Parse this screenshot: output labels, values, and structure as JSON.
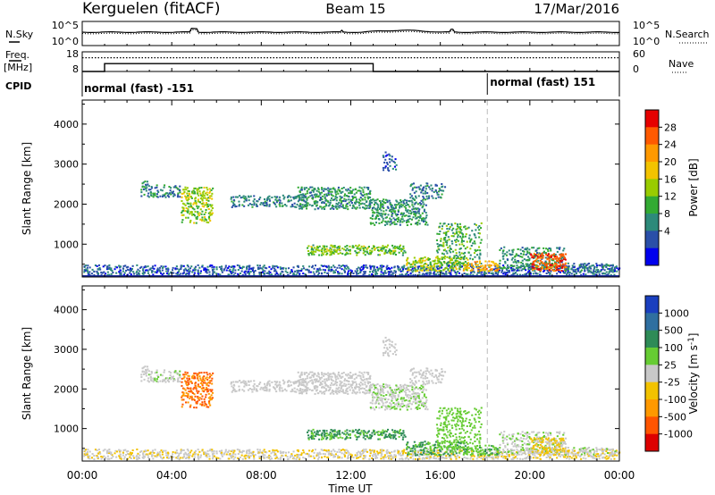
{
  "header": {
    "title": "Kerguelen (fitACF)",
    "beam": "Beam 15",
    "date": "17/Mar/2016"
  },
  "sky_panel": {
    "left_label": "N.Sky",
    "right_label": "N.Search",
    "left_ticks": [
      "10^5",
      "10^0"
    ],
    "right_ticks": [
      "10^5",
      "10^0"
    ]
  },
  "freq_panel": {
    "left_label_1": "Freq.",
    "left_label_2": "[MHz]",
    "right_label": "Nave",
    "left_ticks": [
      "18",
      "8"
    ],
    "right_ticks": [
      "60",
      "0"
    ],
    "freq_steps": [
      {
        "t": 0.0,
        "f": 8
      },
      {
        "t": 1.0,
        "f": 12
      },
      {
        "t": 13.0,
        "f": 12
      },
      {
        "t": 13.0,
        "f": 8
      },
      {
        "t": 24.0,
        "f": 8
      }
    ],
    "nave_level": 42
  },
  "cpid_panel": {
    "label": "CPID",
    "modes": [
      {
        "start": 0.0,
        "text": "normal (fast) -151"
      },
      {
        "start": 18.1,
        "text": "normal (fast) 151"
      }
    ]
  },
  "power_colorbar": {
    "label": "Power [dB]",
    "ticks": [
      "28",
      "24",
      "20",
      "16",
      "12",
      "8",
      "4"
    ],
    "colors": [
      "#e60000",
      "#ff5a00",
      "#ff9900",
      "#f3c300",
      "#99cc00",
      "#33aa33",
      "#2d8a7a",
      "#2a4fa8",
      "#0000ee"
    ]
  },
  "velocity_colorbar": {
    "label": "Velocity [m s^-1]",
    "ticks": [
      "1000",
      "500",
      "100",
      "25",
      "-25",
      "-100",
      "-500",
      "-1000"
    ],
    "colors": [
      "#1a3fbf",
      "#2f6fa0",
      "#2e8b57",
      "#66cc33",
      "#c8c8c8",
      "#f2c200",
      "#ff9900",
      "#ff5500",
      "#dd0000"
    ]
  },
  "chart_data": {
    "type": "heatmap",
    "xlabel": "Time UT",
    "ylabel": "Slant Range [km]",
    "xlim": [
      0,
      24
    ],
    "ylim": [
      180,
      4600
    ],
    "x_ticks": [
      "00:00",
      "04:00",
      "08:00",
      "12:00",
      "16:00",
      "20:00",
      "00:00"
    ],
    "y_ticks": [
      "1000",
      "2000",
      "3000",
      "4000"
    ],
    "mode_change_time": 18.1,
    "scatter_regions": [
      {
        "t0": 0.0,
        "t1": 24.0,
        "r0": 200,
        "r1": 450,
        "density": 0.55,
        "power": 6,
        "vel": -20
      },
      {
        "t0": 2.6,
        "t1": 4.4,
        "r0": 2150,
        "r1": 2450,
        "density": 0.5,
        "power": 8,
        "vel": 15
      },
      {
        "t0": 2.6,
        "t1": 2.9,
        "r0": 2400,
        "r1": 2550,
        "density": 0.5,
        "power": 8,
        "vel": 15
      },
      {
        "t0": 4.4,
        "t1": 5.8,
        "r0": 1500,
        "r1": 2400,
        "density": 0.55,
        "power": 16,
        "vel": -500
      },
      {
        "t0": 6.6,
        "t1": 10.0,
        "r0": 1900,
        "r1": 2200,
        "density": 0.45,
        "power": 8,
        "vel": 10
      },
      {
        "t0": 9.6,
        "t1": 12.9,
        "r0": 1850,
        "r1": 2400,
        "density": 0.6,
        "power": 10,
        "vel": 0
      },
      {
        "t0": 12.8,
        "t1": 15.4,
        "r0": 1450,
        "r1": 2100,
        "density": 0.6,
        "power": 10,
        "vel": 20
      },
      {
        "t0": 14.6,
        "t1": 16.2,
        "r0": 2100,
        "r1": 2500,
        "density": 0.4,
        "power": 8,
        "vel": 10
      },
      {
        "t0": 13.4,
        "t1": 14.0,
        "r0": 2800,
        "r1": 3300,
        "density": 0.4,
        "power": 6,
        "vel": 10
      },
      {
        "t0": 10.0,
        "t1": 14.4,
        "r0": 700,
        "r1": 950,
        "density": 0.6,
        "power": 14,
        "vel": 120
      },
      {
        "t0": 14.4,
        "t1": 17.2,
        "r0": 300,
        "r1": 650,
        "density": 0.5,
        "power": 16,
        "vel": 100
      },
      {
        "t0": 15.8,
        "t1": 17.8,
        "r0": 400,
        "r1": 1500,
        "density": 0.35,
        "power": 12,
        "vel": 60
      },
      {
        "t0": 17.0,
        "t1": 18.6,
        "r0": 300,
        "r1": 550,
        "density": 0.55,
        "power": 22,
        "vel": 80
      },
      {
        "t0": 18.6,
        "t1": 21.5,
        "r0": 350,
        "r1": 900,
        "density": 0.45,
        "power": 10,
        "vel": 20
      },
      {
        "t0": 20.0,
        "t1": 21.6,
        "r0": 300,
        "r1": 750,
        "density": 0.65,
        "power": 28,
        "vel": -30
      },
      {
        "t0": 21.5,
        "t1": 23.8,
        "r0": 300,
        "r1": 500,
        "density": 0.4,
        "power": 8,
        "vel": 15
      }
    ]
  }
}
